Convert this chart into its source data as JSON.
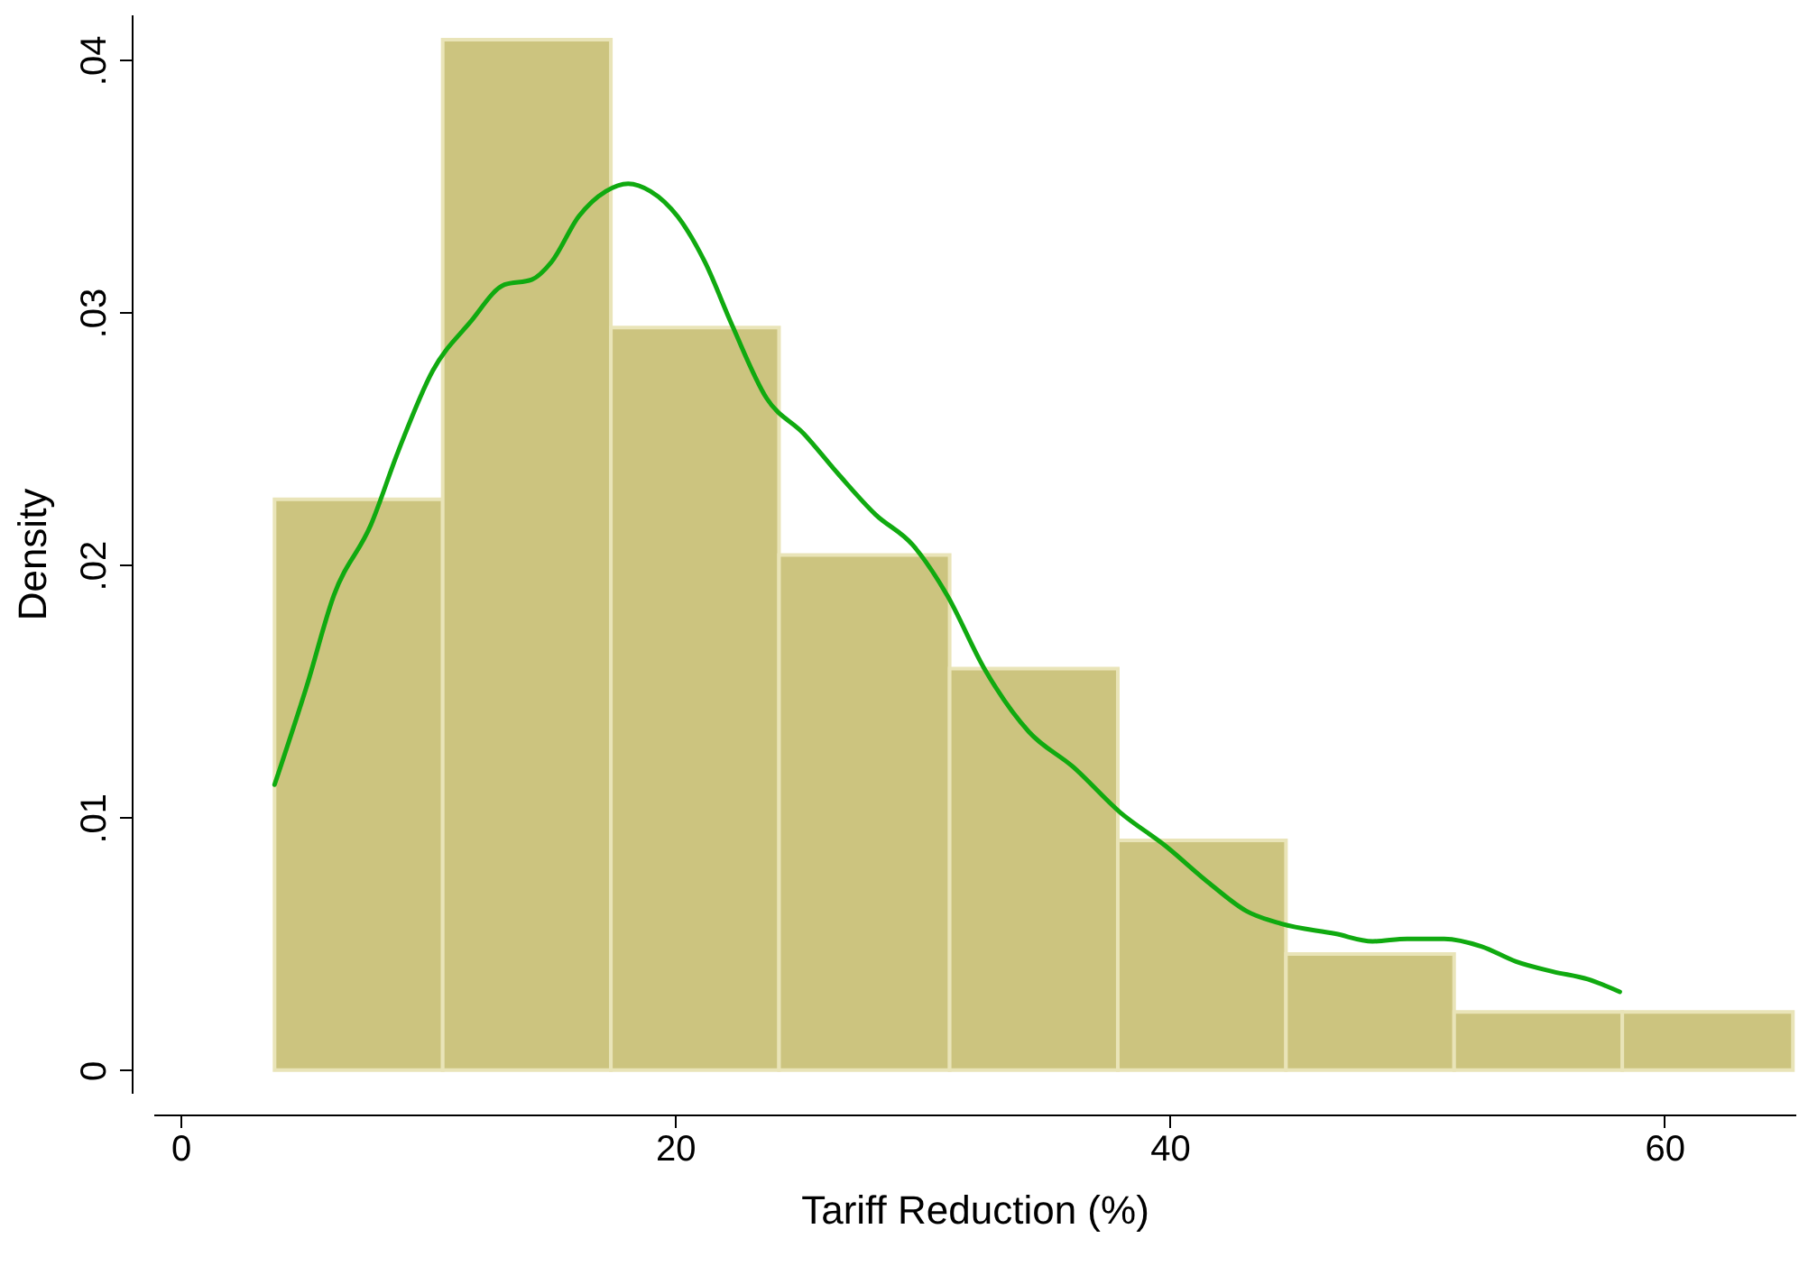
{
  "chart_data": {
    "type": "histogram",
    "xlabel": "Tariff Reduction (%)",
    "ylabel": "Density",
    "bins": [
      3.8,
      10.6,
      17.4,
      24.2,
      31.1,
      37.9,
      44.7,
      51.5,
      58.3,
      65.2
    ],
    "values": [
      0.0226,
      0.0408,
      0.0294,
      0.0204,
      0.0159,
      0.0091,
      0.0046,
      0.0023,
      0.0023
    ],
    "color": "#ccc47f",
    "series": [
      {
        "type": "line",
        "color": "#10aa10",
        "x": [
          3.8,
          5.1,
          6.2,
          7.7,
          8.8,
          10.2,
          11.7,
          13.1,
          14.2,
          15.0,
          16.1,
          17.2,
          18.1,
          19.0,
          20.1,
          21.2,
          22.3,
          23.7,
          25.2,
          26.6,
          28.1,
          29.6,
          31.0,
          32.5,
          34.3,
          36.1,
          38.0,
          39.8,
          41.6,
          43.1,
          44.5,
          46.7,
          48.2,
          49.6,
          51.1,
          52.6,
          54.0,
          55.5,
          56.9,
          58.2
        ],
        "values": [
          0.0113,
          0.0152,
          0.0188,
          0.0216,
          0.0245,
          0.0277,
          0.0296,
          0.0311,
          0.0313,
          0.032,
          0.0338,
          0.0348,
          0.0351,
          0.0348,
          0.0338,
          0.032,
          0.0295,
          0.0266,
          0.0252,
          0.0236,
          0.022,
          0.0208,
          0.0188,
          0.0159,
          0.0134,
          0.012,
          0.0102,
          0.0089,
          0.0074,
          0.0063,
          0.0058,
          0.0054,
          0.0051,
          0.0052,
          0.0052,
          0.0049,
          0.0043,
          0.0039,
          0.0036,
          0.0031
        ]
      }
    ],
    "xlim": [
      -1.1,
      65.3
    ],
    "xticks": [
      0,
      20,
      40,
      60
    ],
    "ylim": [
      -0.0009,
      0.0418
    ],
    "yticks": [
      0,
      {
        "value": 0.01,
        "label": ".01"
      },
      {
        "value": 0.02,
        "label": ".02"
      },
      {
        "value": 0.03,
        "label": ".03"
      },
      {
        "value": 0.04,
        "label": ".04"
      }
    ]
  }
}
